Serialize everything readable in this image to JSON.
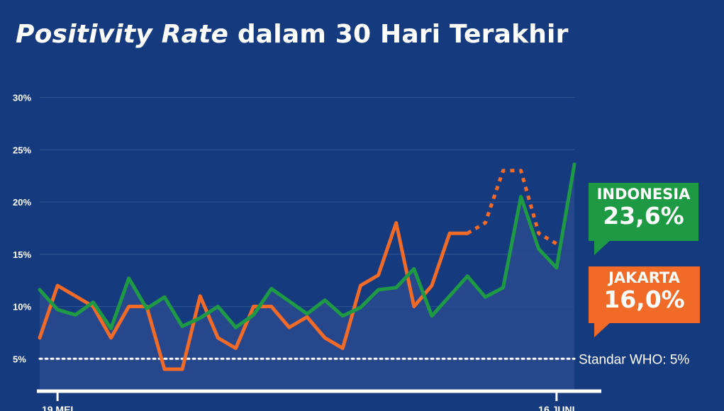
{
  "title": {
    "italic": "Positivity Rate",
    "rest": " dalam 30 Hari Terakhir"
  },
  "callouts": {
    "indonesia": {
      "name": "INDONESIA",
      "value": "23,6%",
      "color": "#1f9a44"
    },
    "jakarta": {
      "name": "JAKARTA",
      "value": "16,0%",
      "color": "#f06a28"
    }
  },
  "chart_data": {
    "type": "line",
    "title": "Positivity Rate dalam 30 Hari Terakhir",
    "xlabel": "",
    "ylabel": "",
    "ylim": [
      0,
      30
    ],
    "yticks": [
      5,
      10,
      15,
      20,
      25,
      30
    ],
    "ytick_labels": [
      "5%",
      "10%",
      "15%",
      "20%",
      "25%",
      "30%"
    ],
    "x_tick_labels": [
      {
        "label": "19 MEI",
        "x": 3
      },
      {
        "label": "16 JUNI",
        "x": 31
      }
    ],
    "x": [
      3,
      4,
      5,
      6,
      7,
      8,
      9,
      10,
      11,
      12,
      13,
      14,
      15,
      16,
      17,
      18,
      19,
      20,
      21,
      22,
      23,
      24,
      25,
      26,
      27,
      28,
      29,
      30,
      31
    ],
    "grid": true,
    "series": [
      {
        "name": "INDONESIA",
        "color": "#1f9a44",
        "values": [
          11.6,
          9.7,
          9.2,
          10.4,
          7.9,
          12.7,
          9.8,
          10.9,
          8.1,
          8.9,
          10.0,
          8.0,
          9.2,
          11.7,
          10.5,
          9.3,
          10.6,
          9.1,
          9.9,
          11.6,
          11.8,
          13.6,
          9.1,
          11.0,
          12.9,
          10.9,
          11.8,
          20.5,
          15.5,
          13.7,
          23.6
        ],
        "x": [
          2,
          3,
          4,
          5,
          6,
          7,
          8,
          9,
          10,
          11,
          12,
          13,
          14,
          15,
          16,
          17,
          18,
          19,
          20,
          21,
          22,
          23,
          24,
          25,
          26,
          27,
          28,
          29,
          30,
          31,
          32
        ],
        "label": "23,6%"
      },
      {
        "name": "JAKARTA",
        "color": "#f06a28",
        "values": [
          7.0,
          12.0,
          11.0,
          10.0,
          7.0,
          10.0,
          10.0,
          4.0,
          4.0,
          11.0,
          7.0,
          6.0,
          10.0,
          10.0,
          8.0,
          9.0,
          7.0,
          6.0,
          12.0,
          13.0,
          18.0,
          10.0,
          12.0,
          17.0,
          17.0
        ],
        "x": [
          2,
          3,
          4,
          5,
          6,
          7,
          8,
          9,
          10,
          11,
          12,
          13,
          14,
          15,
          16,
          17,
          18,
          19,
          20,
          21,
          22,
          23,
          24,
          25,
          26
        ],
        "dashed_values": [
          17.0,
          18.0,
          23.0,
          23.0,
          17.0,
          16.0
        ],
        "dashed_x": [
          26,
          27,
          28,
          29,
          30,
          31
        ],
        "label": "16,0%"
      }
    ],
    "reference_line": {
      "value": 5,
      "label": "Standar WHO: 5%",
      "style": "dotted",
      "color": "#ffffff"
    }
  }
}
